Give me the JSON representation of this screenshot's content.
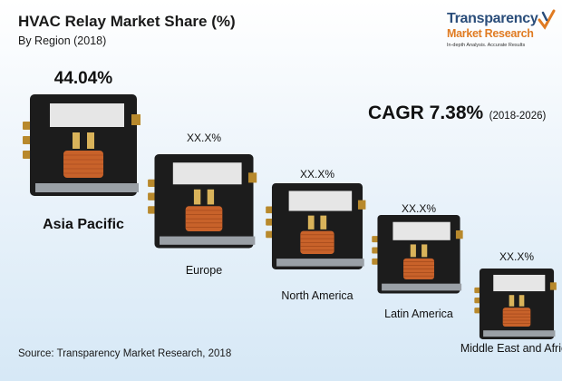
{
  "header": {
    "title": "HVAC Relay Market Share (%)",
    "subtitle": "By Region (2018)"
  },
  "logo": {
    "name": "Transparency",
    "sub": "Market Research",
    "tagline": "In-depth Analysis. Accurate Results"
  },
  "cagr": {
    "label": "CAGR 7.38%",
    "period": "(2018-2026)"
  },
  "source": "Source: Transparency Market Research, 2018",
  "colors": {
    "relay_body": "#1c1c1c",
    "coil": "#c8622a",
    "terminal": "#b8892c",
    "plate": "#9aa0a6"
  },
  "chart_data": {
    "type": "bar",
    "title": "HVAC Relay Market Share (%)",
    "subtitle": "By Region (2018)",
    "categories": [
      "Asia Pacific",
      "Europe",
      "North America",
      "Latin America",
      "Middle East and Africa"
    ],
    "value_labels": [
      "44.04%",
      "XX.X%",
      "XX.X%",
      "XX.X%",
      "XX.X%"
    ],
    "values": [
      44.04,
      null,
      null,
      null,
      null
    ],
    "visual_rank": [
      5,
      4,
      3,
      2,
      1
    ],
    "mark": "hvac-relay-image"
  }
}
